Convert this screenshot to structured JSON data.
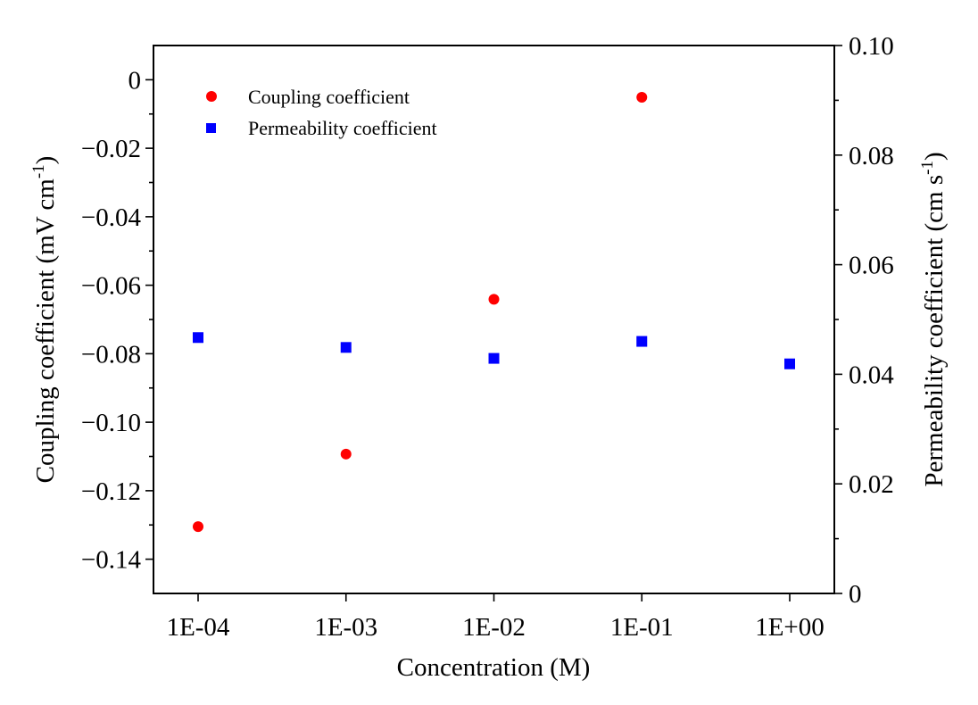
{
  "chart_data": {
    "type": "scatter",
    "title": "",
    "xlabel": "Concentration (M)",
    "x_scale": "log",
    "x_categories": [
      "1E-04",
      "1E-03",
      "1E-02",
      "1E-01",
      "1E+00"
    ],
    "x_values": [
      0.0001,
      0.001,
      0.01,
      0.1,
      1
    ],
    "ylabel_left": {
      "main": "Coupling coefficient (mV cm",
      "sup": "-1",
      "tail": ")"
    },
    "ylabel_right": {
      "main": "Permeability coefficient (cm s",
      "sup": "-1",
      "tail": ")"
    },
    "ylim_left": [
      -0.15,
      0.01
    ],
    "yticks_left": [
      0,
      -0.02,
      -0.04,
      -0.06,
      -0.08,
      -0.1,
      -0.12,
      -0.14
    ],
    "ytick_labels_left": [
      "0",
      "−0.02",
      "−0.04",
      "−0.06",
      "−0.08",
      "−0.10",
      "−0.12",
      "−0.14"
    ],
    "ylim_right": [
      0,
      0.1
    ],
    "yticks_right": [
      0,
      0.02,
      0.04,
      0.06,
      0.08,
      0.1
    ],
    "ytick_labels_right": [
      "0",
      "0.02",
      "0.04",
      "0.06",
      "0.08",
      "0.10"
    ],
    "legend_position": "top-left",
    "series": [
      {
        "name": "Coupling coefficient",
        "axis": "left",
        "marker": "circle",
        "color": "#ff0000",
        "x": [
          0.0001,
          0.001,
          0.01,
          0.1
        ],
        "y": [
          -0.1305,
          -0.1093,
          -0.0641,
          -0.0051
        ]
      },
      {
        "name": "Permeability coefficient",
        "axis": "right",
        "marker": "square",
        "color": "#0000ff",
        "x": [
          0.0001,
          0.001,
          0.01,
          0.1,
          1
        ],
        "y": [
          0.0467,
          0.0449,
          0.0429,
          0.046,
          0.0419
        ]
      }
    ]
  }
}
